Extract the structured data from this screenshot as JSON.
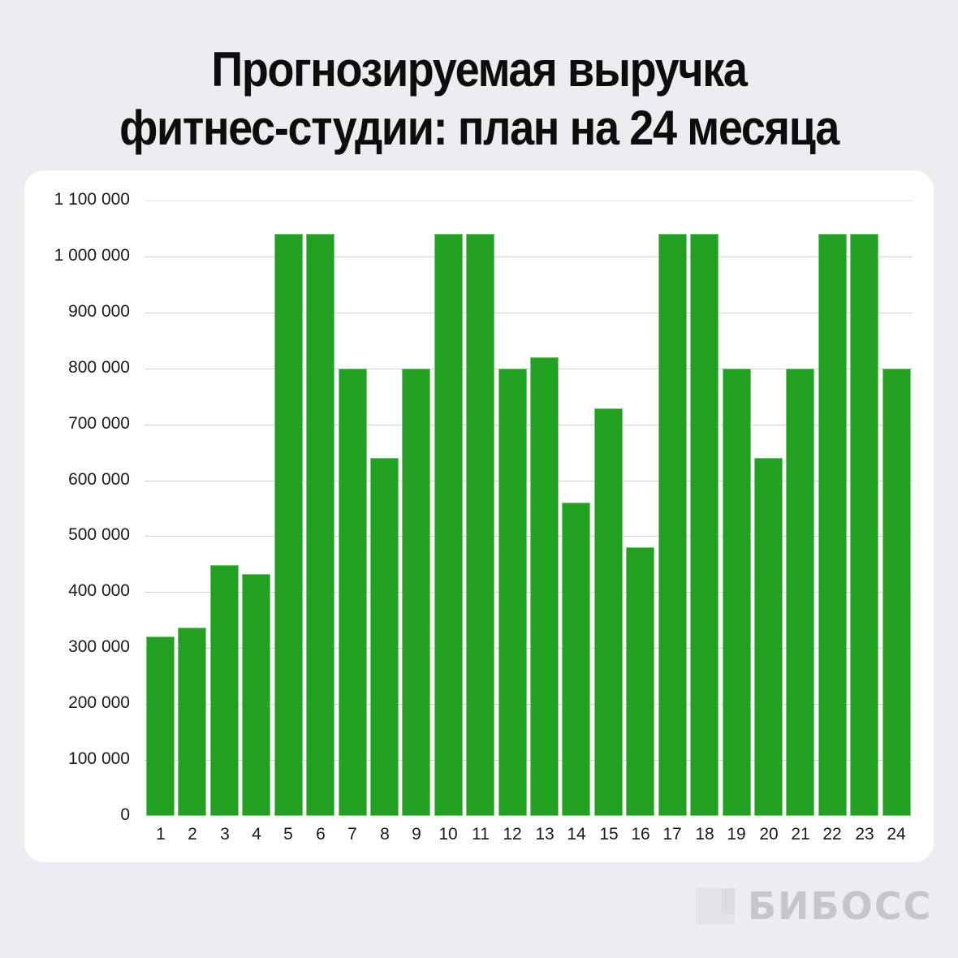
{
  "title": {
    "line1": "Прогнозируемая выручка",
    "line2": "фитнес-студии: план на 24 месяца"
  },
  "brand": {
    "logo_text": "БИБОСС"
  },
  "colors": {
    "background": "#ecedf1",
    "card": "#ffffff",
    "bar": "#22a022",
    "grid": "#d2d2d2"
  },
  "chart_data": {
    "type": "bar",
    "title": "Прогнозируемая выручка фитнес-студии: план на 24 месяца",
    "xlabel": "",
    "ylabel": "",
    "categories": [
      "1",
      "2",
      "3",
      "4",
      "5",
      "6",
      "7",
      "8",
      "9",
      "10",
      "11",
      "12",
      "13",
      "14",
      "15",
      "16",
      "17",
      "18",
      "19",
      "20",
      "21",
      "22",
      "23",
      "24"
    ],
    "values": [
      320000,
      336000,
      448000,
      432000,
      1040000,
      1040000,
      800000,
      640000,
      800000,
      1040000,
      1040000,
      800000,
      820000,
      560000,
      728000,
      480000,
      1040000,
      1040000,
      800000,
      640000,
      800000,
      1040000,
      1040000,
      800000
    ],
    "ylim": [
      0,
      1100000
    ],
    "yticks": [
      0,
      100000,
      200000,
      300000,
      400000,
      500000,
      600000,
      700000,
      800000,
      900000,
      1000000,
      1100000
    ],
    "ytick_labels": [
      "0",
      "100 000",
      "200 000",
      "300 000",
      "400 000",
      "500 000",
      "600 000",
      "700 000",
      "800 000",
      "900 000",
      "1 000 000",
      "1 100 000"
    ],
    "grid": true,
    "legend": null
  }
}
